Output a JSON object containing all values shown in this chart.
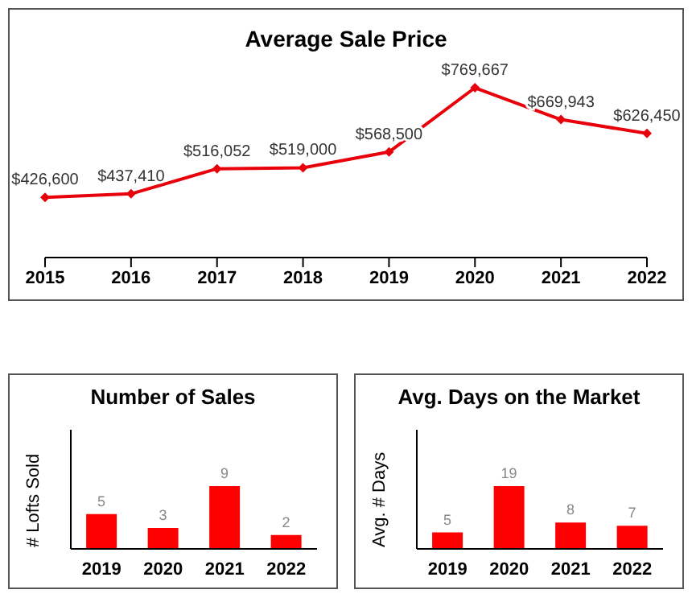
{
  "chart_data": [
    {
      "type": "line",
      "title": "Average Sale Price",
      "categories": [
        "2015",
        "2016",
        "2017",
        "2018",
        "2019",
        "2020",
        "2021",
        "2022"
      ],
      "series": [
        {
          "color": "#e8000b",
          "values": [
            426600,
            437410,
            516052,
            519000,
            568500,
            769667,
            669943,
            626450
          ],
          "value_labels": [
            "$426,600",
            "$437,410",
            "$516,052",
            "$519,000",
            "$568,500",
            "$769,667",
            "$669,943",
            "$626,450"
          ]
        }
      ],
      "marker": "diamond",
      "tick_labels": "x"
    },
    {
      "type": "bar",
      "title": "Number of Sales",
      "ylabel": "# Lofts Sold",
      "categories": [
        "2019",
        "2020",
        "2021",
        "2022"
      ],
      "values": [
        5,
        3,
        9,
        2
      ],
      "color": "#ff0000",
      "data_labels": true,
      "tick_labels": "x"
    },
    {
      "type": "bar",
      "title": "Avg. Days on the Market",
      "ylabel": "Avg. # Days",
      "categories": [
        "2019",
        "2020",
        "2021",
        "2022"
      ],
      "values": [
        5,
        19,
        8,
        7
      ],
      "color": "#ff0000",
      "data_labels": true,
      "tick_labels": "x"
    }
  ]
}
